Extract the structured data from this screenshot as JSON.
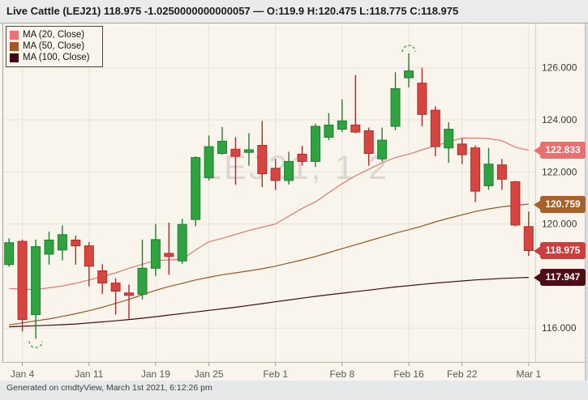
{
  "title_bar": {
    "title": "Live Cattle (LEJ21) 118.975 -1.0250000000000057 — O:119.9 H:120.475 L:118.775 C:118.975"
  },
  "legend": {
    "items": [
      {
        "label": "MA (20, Close)",
        "color": "#ee7272"
      },
      {
        "label": "MA (50, Close)",
        "color": "#a8552a"
      },
      {
        "label": "MA (100, Close)",
        "color": "#470310"
      }
    ]
  },
  "watermark": "LEJ21, 1 2",
  "footer": {
    "text": "Generated on cmdtyView, March 1st 2021, 6:12:26 pm"
  },
  "price_badges": [
    {
      "label": "122.833",
      "price": 122.833,
      "color": "#ec6e6e",
      "series": "MA (20, Close)"
    },
    {
      "label": "120.759",
      "price": 120.759,
      "color": "#a9612b",
      "series": "MA (50, Close)"
    },
    {
      "label": "118.975",
      "price": 118.975,
      "color": "#cf3c3c",
      "series": "last-price"
    },
    {
      "label": "117.947",
      "price": 117.947,
      "color": "#4f0d15",
      "series": "MA (100, Close)"
    }
  ],
  "colors": {
    "up": "#2fa33f",
    "up_border": "#1f8030",
    "down": "#d6453f",
    "down_border": "#b02c27",
    "background": "#faf5ec",
    "gridline": "#e8e3d9",
    "axis_line": "#b2b4b5",
    "plot_border": "#a0a2a4",
    "right_axis_border": "#cfd0d1",
    "tick": "#9b9d9e",
    "watermark": "#c5c2bc",
    "annotation": "#2fa33f"
  },
  "y_axis": {
    "labels": [
      "126.000",
      "124.000",
      "122.000",
      "120.000",
      "116.000"
    ],
    "prices": [
      126,
      124,
      122,
      120,
      116
    ]
  },
  "x_axis": {
    "labels": [
      "Jan 4",
      "Jan 11",
      "Jan 19",
      "Jan 25",
      "Feb 1",
      "Feb 8",
      "Feb 16",
      "Feb 22",
      "Mar 1"
    ],
    "indices": [
      1,
      6,
      11,
      15,
      20,
      25,
      30,
      34,
      39
    ]
  },
  "chart_data": {
    "type": "candlestick",
    "title": "Live Cattle (LEJ21)",
    "ylim": [
      115.3,
      126.9
    ],
    "x": [
      "Dec 31",
      "Jan 4",
      "Jan 5",
      "Jan 6",
      "Jan 7",
      "Jan 8",
      "Jan 11",
      "Jan 12",
      "Jan 13",
      "Jan 14",
      "Jan 15",
      "Jan 19",
      "Jan 20",
      "Jan 21",
      "Jan 22",
      "Jan 25",
      "Jan 26",
      "Jan 27",
      "Jan 28",
      "Jan 29",
      "Feb 1",
      "Feb 2",
      "Feb 3",
      "Feb 4",
      "Feb 5",
      "Feb 8",
      "Feb 9",
      "Feb 10",
      "Feb 11",
      "Feb 12",
      "Feb 16",
      "Feb 17",
      "Feb 18",
      "Feb 19",
      "Feb 22",
      "Feb 23",
      "Feb 24",
      "Feb 25",
      "Feb 26",
      "Mar 1"
    ],
    "ohlc_format": [
      "open",
      "high",
      "low",
      "close"
    ],
    "ohlc": [
      [
        118.44,
        119.45,
        118.35,
        119.28
      ],
      [
        119.33,
        119.4,
        115.87,
        116.33
      ],
      [
        116.52,
        119.4,
        115.59,
        119.13
      ],
      [
        118.84,
        119.7,
        118.44,
        119.38
      ],
      [
        119.0,
        119.95,
        118.6,
        119.59
      ],
      [
        119.38,
        119.55,
        118.44,
        119.16
      ],
      [
        119.16,
        119.3,
        117.6,
        118.38
      ],
      [
        118.2,
        118.45,
        117.32,
        117.73
      ],
      [
        117.73,
        117.92,
        116.52,
        117.42
      ],
      [
        117.35,
        117.67,
        116.36,
        117.26
      ],
      [
        117.3,
        119.4,
        117.1,
        118.3
      ],
      [
        118.3,
        120.0,
        118.0,
        119.4
      ],
      [
        118.87,
        120.05,
        118.05,
        118.75
      ],
      [
        118.58,
        120.2,
        118.47,
        119.98
      ],
      [
        120.17,
        122.6,
        119.91,
        122.55
      ],
      [
        121.78,
        123.4,
        121.67,
        122.97
      ],
      [
        122.71,
        123.72,
        122.66,
        123.18
      ],
      [
        122.87,
        123.33,
        121.51,
        122.6
      ],
      [
        122.75,
        123.49,
        122.24,
        122.85
      ],
      [
        123.02,
        123.96,
        121.41,
        121.93
      ],
      [
        122.14,
        122.5,
        121.31,
        121.67
      ],
      [
        121.67,
        122.77,
        121.51,
        122.4
      ],
      [
        122.68,
        123.0,
        122.24,
        122.4
      ],
      [
        122.4,
        123.85,
        122.19,
        123.75
      ],
      [
        123.33,
        124.26,
        123.22,
        123.8
      ],
      [
        123.64,
        124.79,
        123.53,
        123.96
      ],
      [
        123.8,
        125.72,
        123.48,
        123.53
      ],
      [
        123.58,
        123.7,
        122.24,
        122.71
      ],
      [
        122.5,
        123.7,
        122.4,
        123.22
      ],
      [
        123.75,
        125.83,
        123.6,
        125.2
      ],
      [
        125.62,
        126.55,
        125.25,
        125.88
      ],
      [
        125.41,
        126.0,
        123.75,
        124.21
      ],
      [
        124.37,
        124.52,
        122.6,
        122.97
      ],
      [
        122.92,
        123.91,
        122.35,
        123.64
      ],
      [
        123.07,
        123.28,
        122.3,
        122.66
      ],
      [
        122.92,
        123.02,
        120.84,
        121.26
      ],
      [
        121.47,
        122.92,
        121.31,
        122.3
      ],
      [
        122.27,
        122.5,
        121.31,
        121.72
      ],
      [
        121.62,
        121.65,
        119.91,
        119.96
      ],
      [
        119.9,
        120.475,
        118.775,
        118.975
      ]
    ],
    "series": [
      {
        "name": "MA (20, Close)",
        "type": "line",
        "color": "#dd7a6e",
        "values": [
          117.52,
          117.5,
          117.47,
          117.55,
          117.62,
          117.72,
          117.85,
          117.98,
          118.12,
          118.3,
          118.45,
          118.6,
          118.62,
          118.65,
          119.0,
          119.32,
          119.45,
          119.6,
          119.75,
          119.88,
          120.0,
          120.3,
          120.6,
          120.85,
          121.2,
          121.55,
          121.85,
          122.1,
          122.35,
          122.55,
          122.68,
          122.85,
          123.0,
          123.15,
          123.3,
          123.3,
          123.28,
          123.2,
          122.95,
          122.833
        ]
      },
      {
        "name": "MA (50, Close)",
        "type": "line",
        "color": "#9a5526",
        "values": [
          116.12,
          116.2,
          116.28,
          116.35,
          116.45,
          116.55,
          116.67,
          116.8,
          116.95,
          117.1,
          117.28,
          117.45,
          117.6,
          117.72,
          117.85,
          117.95,
          118.05,
          118.12,
          118.2,
          118.28,
          118.38,
          118.5,
          118.62,
          118.75,
          118.9,
          119.05,
          119.2,
          119.35,
          119.5,
          119.65,
          119.78,
          119.92,
          120.08,
          120.22,
          120.35,
          120.48,
          120.58,
          120.66,
          120.72,
          120.759
        ]
      },
      {
        "name": "MA (100, Close)",
        "type": "line",
        "color": "#3f0a12",
        "values": [
          116.05,
          116.07,
          116.09,
          116.11,
          116.13,
          116.16,
          116.2,
          116.24,
          116.28,
          116.33,
          116.38,
          116.44,
          116.5,
          116.56,
          116.62,
          116.68,
          116.74,
          116.8,
          116.87,
          116.94,
          117.01,
          117.08,
          117.15,
          117.22,
          117.28,
          117.34,
          117.4,
          117.46,
          117.52,
          117.58,
          117.63,
          117.68,
          117.73,
          117.77,
          117.81,
          117.85,
          117.88,
          117.91,
          117.93,
          117.947
        ]
      }
    ],
    "annotations": [
      {
        "type": "dashed-circle-low",
        "index": 2
      },
      {
        "type": "dashed-circle-high",
        "index": 30
      }
    ]
  }
}
